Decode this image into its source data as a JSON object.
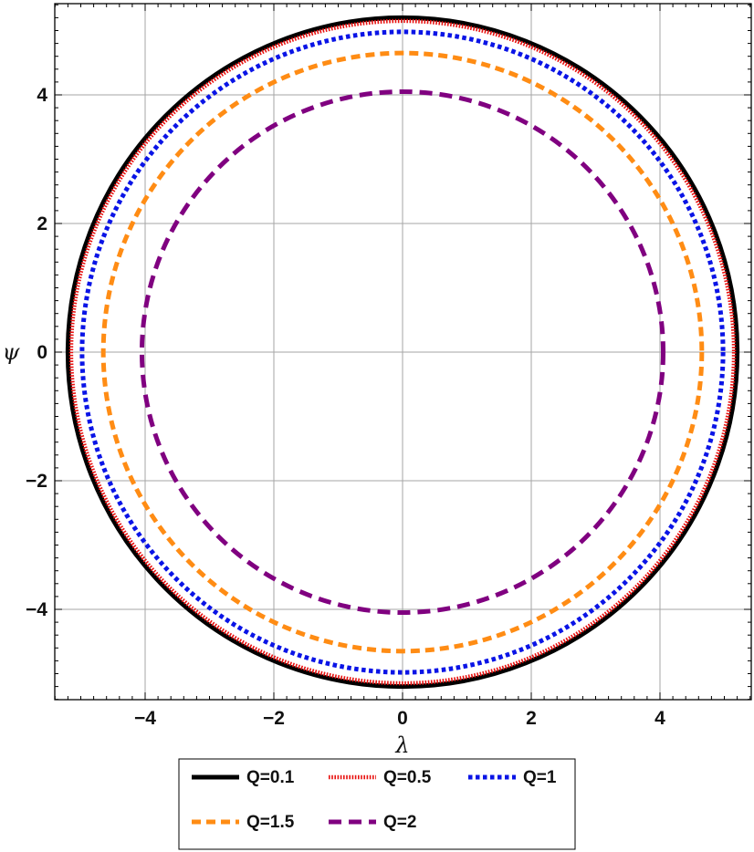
{
  "chart_data": {
    "type": "line",
    "title": "",
    "xlabel": "λ",
    "ylabel": "ψ",
    "xlim": [
      -5.4,
      5.4
    ],
    "ylim": [
      -5.4,
      5.4
    ],
    "grid": true,
    "x_ticks": [
      -4,
      -2,
      0,
      2,
      4
    ],
    "y_ticks": [
      -4,
      -2,
      0,
      2,
      4
    ],
    "x_tick_labels": [
      "−4",
      "−2",
      "0",
      "2",
      "4"
    ],
    "y_tick_labels": [
      "−4",
      "−2",
      "0",
      "2",
      "4"
    ],
    "legend_position": "bottom",
    "series": [
      {
        "name": "Q=0.1",
        "shape": "circle",
        "center": [
          0,
          0
        ],
        "radius": 5.2,
        "color": "#000000",
        "style": "solid"
      },
      {
        "name": "Q=0.5",
        "shape": "circle",
        "center": [
          0,
          0
        ],
        "radius": 5.15,
        "color": "#e8110f",
        "style": "dotted"
      },
      {
        "name": "Q=1",
        "shape": "circle",
        "center": [
          0,
          0
        ],
        "radius": 4.98,
        "color": "#0a14e6",
        "style": "dotted"
      },
      {
        "name": "Q=1.5",
        "shape": "circle",
        "center": [
          0,
          0
        ],
        "radius": 4.65,
        "color": "#ff8c14",
        "style": "dashed"
      },
      {
        "name": "Q=2",
        "shape": "circle",
        "center": [
          0,
          0
        ],
        "radius": 4.05,
        "color": "#800080",
        "style": "dashed"
      }
    ]
  }
}
